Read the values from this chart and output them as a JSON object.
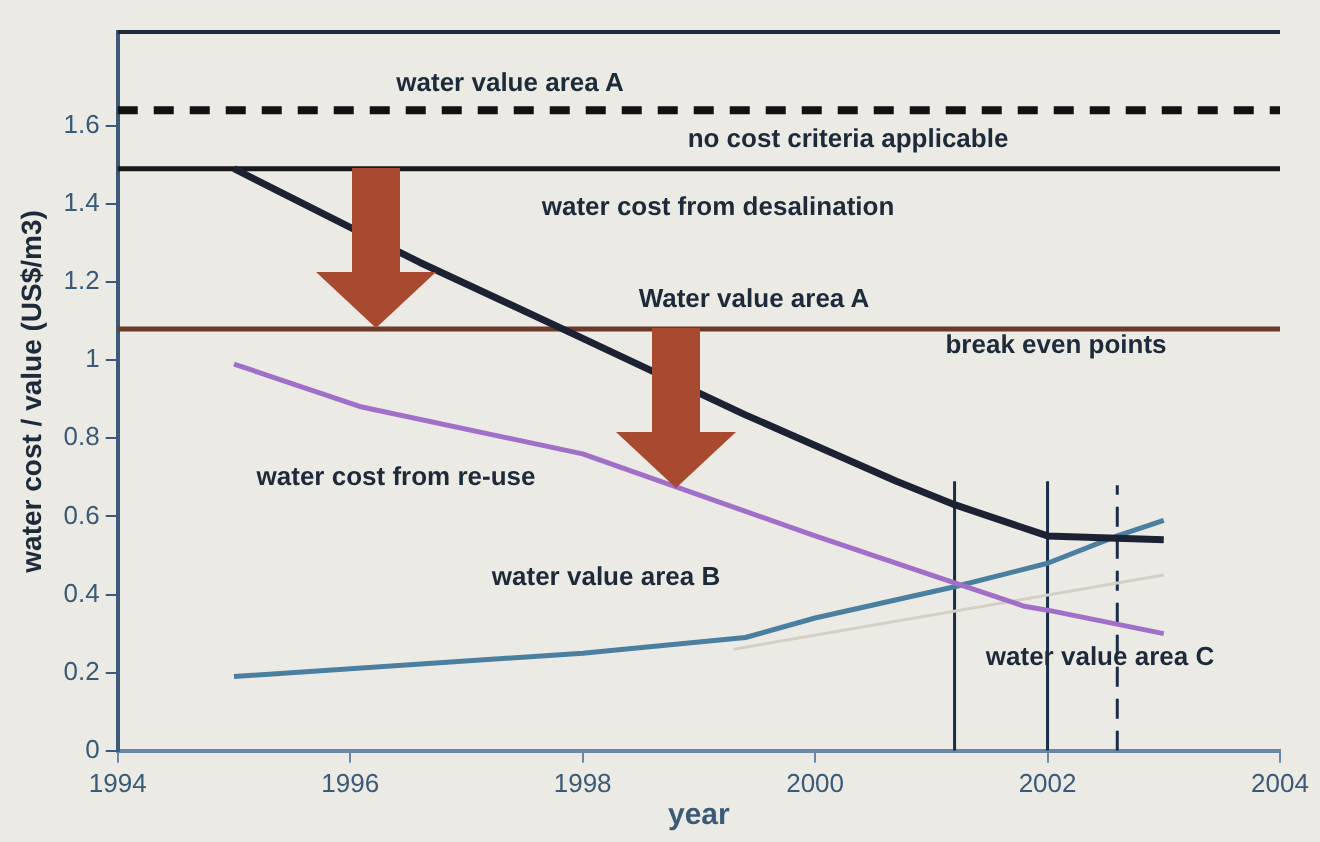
{
  "chart_data": {
    "type": "line",
    "xlabel": "year",
    "ylabel": "water cost / value (US$/m3)",
    "xlim": [
      1994,
      2004
    ],
    "ylim": [
      0,
      1.84
    ],
    "xticks": [
      1994,
      1996,
      1998,
      2000,
      2002,
      2004
    ],
    "yticks": [
      0,
      0.2,
      0.4,
      0.6,
      0.8,
      1,
      1.2,
      1.4,
      1.6
    ],
    "grid": false,
    "legend": false,
    "marker": "none",
    "series": [
      {
        "color": "#1c2233",
        "x": [
          1995,
          1996.6,
          1997.9,
          1999.4,
          2000.7,
          2001.2,
          2002,
          2003
        ],
        "values": [
          1.49,
          1.25,
          1.07,
          0.86,
          0.69,
          0.63,
          0.55,
          0.54
        ]
      },
      {
        "color": "#a070c8",
        "x": [
          1995,
          1996.1,
          1998,
          2000,
          2001.2,
          2001.8,
          2002,
          2003
        ],
        "values": [
          0.99,
          0.88,
          0.76,
          0.55,
          0.43,
          0.37,
          0.36,
          0.3
        ]
      },
      {
        "color": "#4a7fa0",
        "x": [
          1995,
          1998,
          1999.4,
          2000,
          2001.2,
          2002,
          2002.6,
          2003
        ],
        "values": [
          0.19,
          0.25,
          0.29,
          0.34,
          0.42,
          0.48,
          0.55,
          0.59
        ]
      },
      {
        "color": "#d2cfc4",
        "x": [
          1999.3,
          2003
        ],
        "values": [
          0.26,
          0.45
        ]
      },
      {
        "color": "#1a2e48",
        "x": [
          2001.2,
          2001.2
        ],
        "values": [
          0,
          0.69
        ]
      },
      {
        "color": "#1a2e48",
        "x": [
          2002,
          2002
        ],
        "values": [
          0,
          0.69
        ]
      },
      {
        "color": "#1a2e48",
        "x": [
          2002.6,
          2002.6
        ],
        "values": [
          0,
          0.68
        ],
        "line_style": "dashed"
      }
    ],
    "ref_lines": [
      {
        "axis": "y",
        "value": 1.64,
        "color": "#111111",
        "line_style": "dashed"
      },
      {
        "axis": "y",
        "value": 1.49,
        "color": "#1a1a1a"
      },
      {
        "axis": "y",
        "value": 1.08,
        "color": "#6b3a2a"
      }
    ],
    "annotations": [
      "water value area A",
      "no cost criteria applicable",
      "water cost from desalination",
      "Water value area A",
      "break even points",
      "water cost from re-use",
      "water value area B",
      "water value area C"
    ]
  }
}
